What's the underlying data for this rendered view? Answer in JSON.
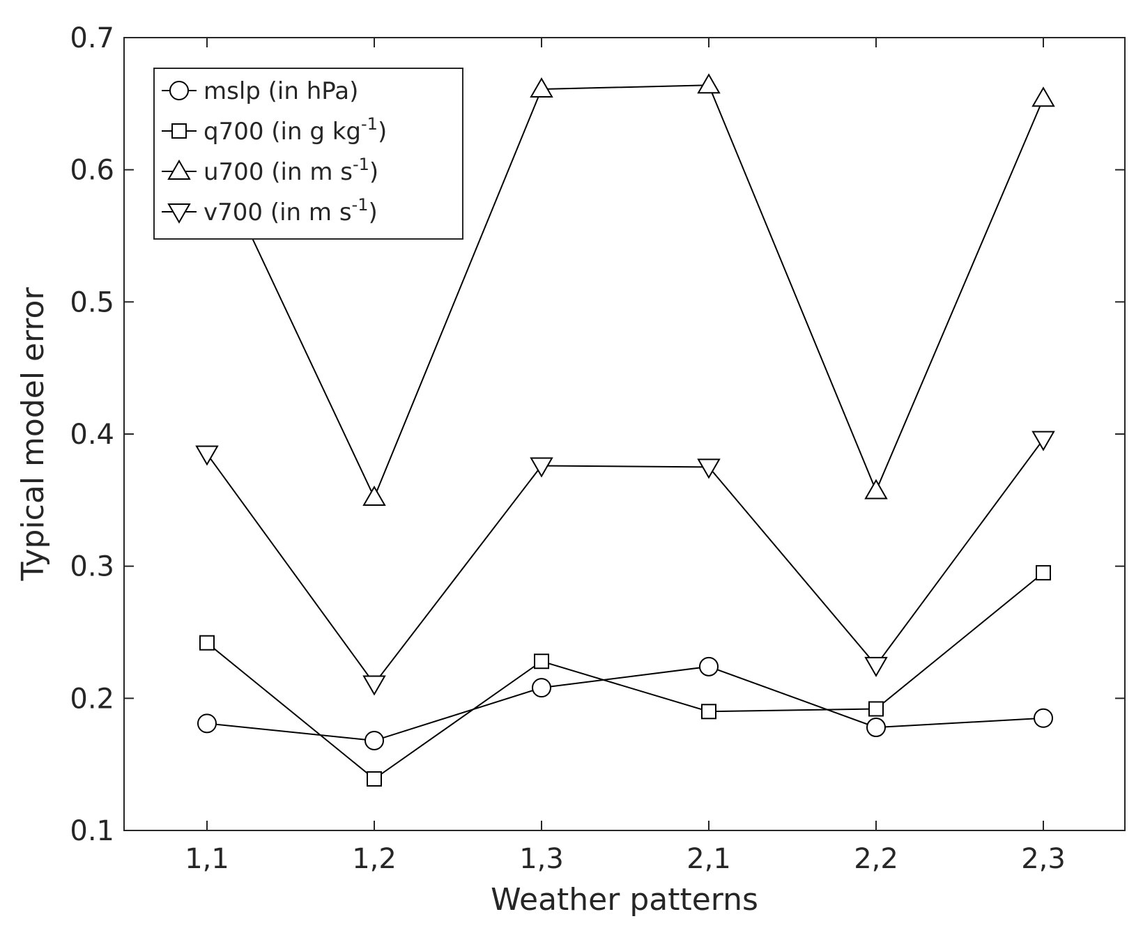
{
  "chart_data": {
    "type": "line",
    "xlabel": "Weather patterns",
    "ylabel": "Typical model error",
    "categories": [
      "1,1",
      "1,2",
      "1,3",
      "2,1",
      "2,2",
      "2,3"
    ],
    "ylim": [
      0.1,
      0.7
    ],
    "yticks": [
      "0.1",
      "0.2",
      "0.3",
      "0.4",
      "0.5",
      "0.6",
      "0.7"
    ],
    "yticks_values": [
      0.1,
      0.2,
      0.3,
      0.4,
      0.5,
      0.6,
      0.7
    ],
    "grid": false,
    "legend_position": "top-left",
    "series": [
      {
        "key": "mslp",
        "name": "mslp (in hPa)",
        "name_parts": {
          "base": "mslp (in hPa)",
          "sup": "",
          "tail": ""
        },
        "marker": "circle",
        "values": [
          0.181,
          0.168,
          0.208,
          0.224,
          0.178,
          0.185
        ]
      },
      {
        "key": "q700",
        "name": "q700 (in g kg-1)",
        "name_parts": {
          "base": "q700 (in g kg",
          "sup": "-1",
          "tail": ")"
        },
        "marker": "square",
        "values": [
          0.242,
          0.139,
          0.228,
          0.19,
          0.192,
          0.295
        ]
      },
      {
        "key": "u700",
        "name": "u700 (in m s-1)",
        "name_parts": {
          "base": "u700 (in m s",
          "sup": "-1",
          "tail": ")"
        },
        "marker": "triangle-up",
        "values": [
          0.621,
          0.352,
          0.661,
          0.664,
          0.357,
          0.654
        ]
      },
      {
        "key": "v700",
        "name": "v700 (in m s-1)",
        "name_parts": {
          "base": "v700 (in m s",
          "sup": "-1",
          "tail": ")"
        },
        "marker": "triangle-down",
        "values": [
          0.385,
          0.211,
          0.376,
          0.375,
          0.225,
          0.396
        ]
      }
    ]
  }
}
